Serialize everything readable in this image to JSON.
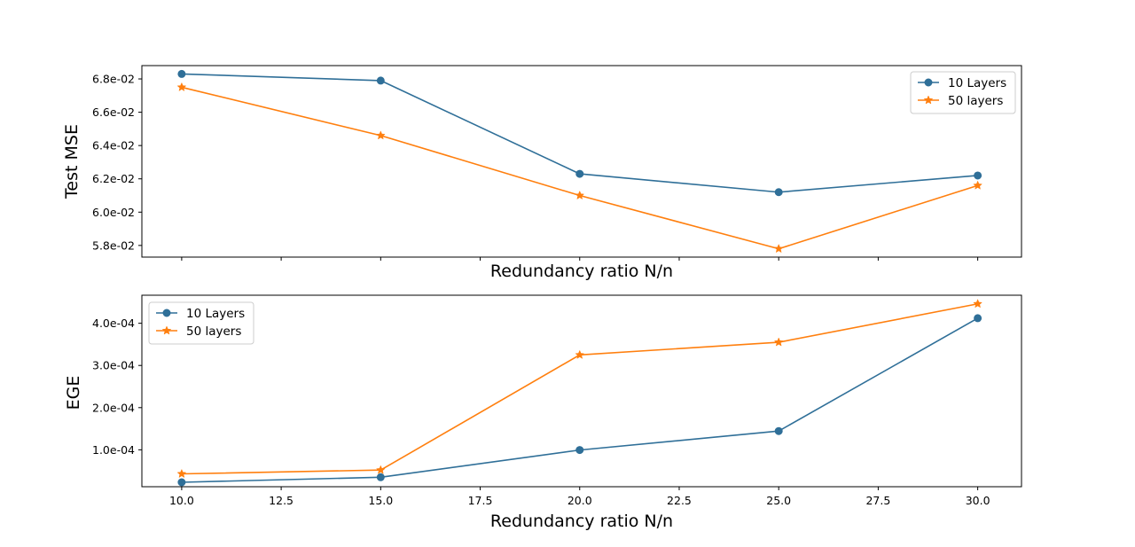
{
  "chart_data": [
    {
      "type": "line",
      "title": "",
      "xlabel": "Redundancy ratio N/n",
      "ylabel": "Test MSE",
      "x": [
        10,
        15,
        20,
        25,
        30
      ],
      "xlim": [
        9,
        31.1
      ],
      "xticks": [
        10,
        12.5,
        15,
        17.5,
        20,
        22.5,
        25,
        27.5,
        30
      ],
      "xtick_labels_visible": false,
      "ylim": [
        0.0573,
        0.0688
      ],
      "yticks": [
        0.058,
        0.06,
        0.062,
        0.064,
        0.066,
        0.068
      ],
      "ytick_labels": [
        "5.8e-02",
        "6.0e-02",
        "6.2e-02",
        "6.4e-02",
        "6.6e-02",
        "6.8e-02"
      ],
      "legend_position": "top-right",
      "series": [
        {
          "name": "10 Layers",
          "color": "#2f6f98",
          "marker": "circle",
          "values": [
            0.0683,
            0.0679,
            0.0623,
            0.0612,
            0.0622
          ]
        },
        {
          "name": "50 layers",
          "color": "#ff7f0e",
          "marker": "star",
          "values": [
            0.0675,
            0.0646,
            0.061,
            0.0578,
            0.0616
          ]
        }
      ]
    },
    {
      "type": "line",
      "title": "",
      "xlabel": "Redundancy ratio N/n",
      "ylabel": "EGE",
      "x": [
        10,
        15,
        20,
        25,
        30
      ],
      "xlim": [
        9,
        31.1
      ],
      "xticks": [
        10,
        12.5,
        15,
        17.5,
        20,
        22.5,
        25,
        27.5,
        30
      ],
      "xtick_labels": [
        "10.0",
        "12.5",
        "15.0",
        "17.5",
        "20.0",
        "22.5",
        "25.0",
        "27.5",
        "30.0"
      ],
      "xtick_labels_visible": true,
      "ylim": [
        1.25e-05,
        0.0004665
      ],
      "yticks": [
        0.0001,
        0.0002,
        0.0003,
        0.0004
      ],
      "ytick_labels": [
        "1.0e-04",
        "2.0e-04",
        "3.0e-04",
        "4.0e-04"
      ],
      "legend_position": "top-left",
      "series": [
        {
          "name": "10 Layers",
          "color": "#2f6f98",
          "marker": "circle",
          "values": [
            2.3e-05,
            3.5e-05,
            9.95e-05,
            0.0001445,
            0.000412
          ]
        },
        {
          "name": "50 layers",
          "color": "#ff7f0e",
          "marker": "star",
          "values": [
            4.3e-05,
            5.2e-05,
            0.000325,
            0.000355,
            0.000446
          ]
        }
      ]
    }
  ]
}
